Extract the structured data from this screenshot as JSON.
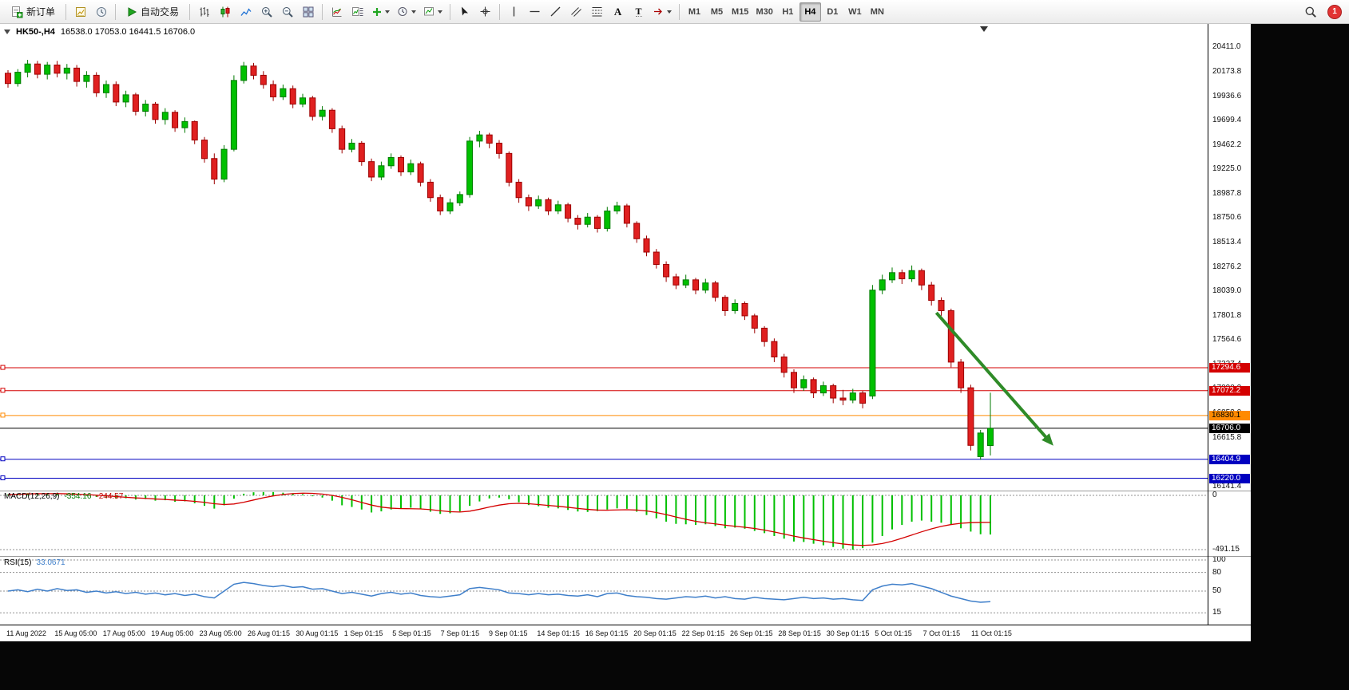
{
  "toolbar": {
    "new_order_label": "新订单",
    "autotrading_label": "自动交易",
    "timeframes": [
      "M1",
      "M5",
      "M15",
      "M30",
      "H1",
      "H4",
      "D1",
      "W1",
      "MN"
    ],
    "active_timeframe": "H4",
    "notification_count": "1"
  },
  "icons": {
    "new_order_icon": "page-plus",
    "new_chart_icon": "chart-page",
    "market_watch_icon": "clock-quotes",
    "autotrading_icon": "green-play",
    "bar_chart_icon": "ohlc-bars",
    "candlestick_icon": "candles",
    "line_chart_icon": "polyline",
    "zoom_in_icon": "magnifier-plus",
    "zoom_out_icon": "magnifier-minus",
    "tile_windows_icon": "grid-2x2",
    "indicators_icon": "chart-curves",
    "indicator_windows_icon": "chart-list",
    "add_indicator_icon": "green-plus-dropdown",
    "periods_icon": "clock-dropdown",
    "templates_icon": "template-dropdown",
    "cursor_icon": "pointer-arrow",
    "crosshair_icon": "crosshair",
    "vline_icon": "vertical-line",
    "hline_icon": "horizontal-line",
    "trendline_icon": "diagonal-line",
    "channel_icon": "parallel-lines",
    "fibonacci_icon": "fibo-lines",
    "text_tool_glyph": "A",
    "label_tool_glyph": "T",
    "arrows_icon": "arrow-dropdown",
    "search_icon": "magnifier",
    "shift_marker_icon": "down-triangle"
  },
  "chart_header": {
    "symbol_period": "HK50-,H4",
    "ohlc": "16538.0 17053.0 16441.5 16706.0"
  },
  "chart_data": {
    "type": "candlestick",
    "symbol": "HK50-",
    "timeframe": "H4",
    "title": "HK50-,H4 16538.0 17053.0 16441.5 16706.0",
    "grid": false,
    "legend_position": "none",
    "price_axis": {
      "min": 16100,
      "max": 20500,
      "ticks": [
        20411.0,
        20173.8,
        19936.6,
        19699.4,
        19462.2,
        19225.0,
        18987.8,
        18750.6,
        18513.4,
        18276.2,
        18039.0,
        17801.8,
        17564.6,
        17327.4,
        17090.2,
        16853.0,
        16615.8,
        16378.6,
        16141.4
      ]
    },
    "x_labels": [
      "11 Aug 2022",
      "15 Aug 05:00",
      "17 Aug 05:00",
      "19 Aug 05:00",
      "23 Aug 05:00",
      "26 Aug 01:15",
      "30 Aug 01:15",
      "1 Sep 01:15",
      "5 Sep 01:15",
      "7 Sep 01:15",
      "9 Sep 01:15",
      "14 Sep 01:15",
      "16 Sep 01:15",
      "20 Sep 01:15",
      "22 Sep 01:15",
      "26 Sep 01:15",
      "28 Sep 01:15",
      "30 Sep 01:15",
      "5 Oct 01:15",
      "7 Oct 01:15",
      "11 Oct 01:15"
    ],
    "candles": [
      [
        20160,
        20190,
        20020,
        20060
      ],
      [
        20060,
        20200,
        20030,
        20170
      ],
      [
        20170,
        20290,
        20120,
        20250
      ],
      [
        20250,
        20280,
        20110,
        20150
      ],
      [
        20150,
        20270,
        20100,
        20240
      ],
      [
        20240,
        20280,
        20120,
        20160
      ],
      [
        20160,
        20250,
        20100,
        20210
      ],
      [
        20210,
        20240,
        20030,
        20080
      ],
      [
        20080,
        20180,
        20020,
        20140
      ],
      [
        20140,
        20170,
        19930,
        19970
      ],
      [
        19970,
        20090,
        19920,
        20050
      ],
      [
        20050,
        20080,
        19840,
        19880
      ],
      [
        19880,
        19990,
        19830,
        19950
      ],
      [
        19950,
        19970,
        19750,
        19790
      ],
      [
        19790,
        19900,
        19740,
        19860
      ],
      [
        19860,
        19880,
        19670,
        19710
      ],
      [
        19710,
        19820,
        19660,
        19780
      ],
      [
        19780,
        19800,
        19590,
        19630
      ],
      [
        19630,
        19730,
        19580,
        19690
      ],
      [
        19690,
        19700,
        19470,
        19510
      ],
      [
        19510,
        19540,
        19290,
        19330
      ],
      [
        19330,
        19380,
        19080,
        19130
      ],
      [
        19130,
        19460,
        19100,
        19420
      ],
      [
        19420,
        20140,
        19400,
        20090
      ],
      [
        20090,
        20270,
        20060,
        20230
      ],
      [
        20230,
        20260,
        20100,
        20140
      ],
      [
        20140,
        20180,
        20010,
        20050
      ],
      [
        20050,
        20090,
        19890,
        19930
      ],
      [
        19930,
        20050,
        19900,
        20010
      ],
      [
        20010,
        20040,
        19820,
        19860
      ],
      [
        19860,
        19960,
        19830,
        19920
      ],
      [
        19920,
        19940,
        19700,
        19740
      ],
      [
        19740,
        19840,
        19700,
        19800
      ],
      [
        19800,
        19820,
        19580,
        19620
      ],
      [
        19620,
        19650,
        19380,
        19420
      ],
      [
        19420,
        19520,
        19390,
        19480
      ],
      [
        19480,
        19500,
        19260,
        19300
      ],
      [
        19300,
        19330,
        19110,
        19150
      ],
      [
        19150,
        19300,
        19120,
        19260
      ],
      [
        19260,
        19380,
        19230,
        19340
      ],
      [
        19340,
        19360,
        19160,
        19200
      ],
      [
        19200,
        19320,
        19170,
        19280
      ],
      [
        19280,
        19300,
        19060,
        19100
      ],
      [
        19100,
        19130,
        18910,
        18950
      ],
      [
        18950,
        18980,
        18780,
        18820
      ],
      [
        18820,
        18940,
        18790,
        18900
      ],
      [
        18900,
        19010,
        18870,
        18980
      ],
      [
        18980,
        19540,
        18950,
        19500
      ],
      [
        19500,
        19600,
        19440,
        19560
      ],
      [
        19560,
        19580,
        19430,
        19480
      ],
      [
        19480,
        19510,
        19330,
        19380
      ],
      [
        19380,
        19400,
        19060,
        19100
      ],
      [
        19100,
        19130,
        18900,
        18950
      ],
      [
        18950,
        18980,
        18820,
        18870
      ],
      [
        18870,
        18970,
        18840,
        18930
      ],
      [
        18930,
        18950,
        18780,
        18820
      ],
      [
        18820,
        18920,
        18790,
        18880
      ],
      [
        18880,
        18900,
        18710,
        18750
      ],
      [
        18750,
        18780,
        18640,
        18690
      ],
      [
        18690,
        18800,
        18660,
        18760
      ],
      [
        18760,
        18780,
        18610,
        18650
      ],
      [
        18650,
        18860,
        18620,
        18820
      ],
      [
        18820,
        18910,
        18790,
        18870
      ],
      [
        18870,
        18890,
        18660,
        18700
      ],
      [
        18700,
        18720,
        18510,
        18550
      ],
      [
        18550,
        18580,
        18380,
        18420
      ],
      [
        18420,
        18450,
        18260,
        18300
      ],
      [
        18300,
        18330,
        18130,
        18180
      ],
      [
        18180,
        18210,
        18060,
        18100
      ],
      [
        18100,
        18200,
        18070,
        18150
      ],
      [
        18150,
        18170,
        18010,
        18050
      ],
      [
        18050,
        18160,
        18020,
        18120
      ],
      [
        18120,
        18140,
        17940,
        17980
      ],
      [
        17980,
        18000,
        17800,
        17850
      ],
      [
        17850,
        17960,
        17820,
        17920
      ],
      [
        17920,
        17940,
        17760,
        17800
      ],
      [
        17800,
        17820,
        17630,
        17680
      ],
      [
        17680,
        17700,
        17500,
        17550
      ],
      [
        17550,
        17580,
        17350,
        17400
      ],
      [
        17400,
        17430,
        17200,
        17250
      ],
      [
        17250,
        17280,
        17050,
        17100
      ],
      [
        17100,
        17220,
        17070,
        17180
      ],
      [
        17180,
        17200,
        17000,
        17050
      ],
      [
        17050,
        17160,
        17020,
        17120
      ],
      [
        17120,
        17140,
        16950,
        17000
      ],
      [
        17000,
        17080,
        16930,
        16980
      ],
      [
        16980,
        17090,
        16950,
        17050
      ],
      [
        17050,
        17070,
        16900,
        16950
      ],
      [
        17020,
        18100,
        16990,
        18050
      ],
      [
        18050,
        18200,
        18010,
        18150
      ],
      [
        18150,
        18270,
        18120,
        18220
      ],
      [
        18220,
        18250,
        18110,
        18160
      ],
      [
        18160,
        18290,
        18130,
        18240
      ],
      [
        18240,
        18260,
        18050,
        18100
      ],
      [
        18100,
        18130,
        17900,
        17950
      ],
      [
        17950,
        17980,
        17800,
        17850
      ],
      [
        17850,
        17870,
        17300,
        17350
      ],
      [
        17350,
        17380,
        17050,
        17100
      ],
      [
        17100,
        17130,
        16490,
        16540
      ],
      [
        16430,
        16690,
        16400,
        16660
      ],
      [
        16538,
        17053,
        16441.5,
        16706
      ]
    ],
    "hlines": [
      {
        "price": 17294.6,
        "color": "#d40000"
      },
      {
        "price": 17072.2,
        "color": "#d40000"
      },
      {
        "price": 16830.1,
        "color": "#ff8a00"
      },
      {
        "price": 16404.9,
        "color": "#0000c0"
      },
      {
        "price": 16220.0,
        "color": "#0000c0"
      }
    ],
    "current_price": 16706.0,
    "arrow": {
      "from_bar": 94.5,
      "from_price": 17830,
      "to_bar": 106.2,
      "to_price": 16560
    },
    "macd": {
      "name": "MACD(12,26,9)",
      "main_value": "-354.16",
      "signal_value": "-244.57",
      "scale_ticks": [
        0,
        -491.15
      ],
      "histogram": [
        8,
        14,
        20,
        16,
        12,
        18,
        10,
        4,
        -6,
        -14,
        -22,
        -28,
        -26,
        -38,
        -34,
        -48,
        -44,
        -58,
        -54,
        -72,
        -95,
        -120,
        -90,
        -30,
        15,
        28,
        30,
        30,
        24,
        18,
        10,
        -8,
        -20,
        -48,
        -90,
        -105,
        -128,
        -155,
        -145,
        -128,
        -122,
        -112,
        -122,
        -148,
        -168,
        -162,
        -146,
        -95,
        -55,
        -28,
        -20,
        -35,
        -62,
        -88,
        -98,
        -112,
        -118,
        -132,
        -146,
        -150,
        -142,
        -128,
        -118,
        -122,
        -148,
        -178,
        -208,
        -238,
        -258,
        -262,
        -268,
        -262,
        -278,
        -298,
        -292,
        -302,
        -322,
        -342,
        -368,
        -392,
        -418,
        -422,
        -438,
        -452,
        -468,
        -482,
        -491,
        -478,
        -428,
        -368,
        -308,
        -268,
        -238,
        -228,
        -238,
        -248,
        -268,
        -298,
        -328,
        -352,
        -354.16
      ],
      "signal": [
        6,
        9,
        13,
        15,
        15,
        16,
        14,
        11,
        7,
        2,
        -4,
        -11,
        -17,
        -23,
        -27,
        -33,
        -37,
        -43,
        -47,
        -54,
        -63,
        -76,
        -83,
        -78,
        -62,
        -42,
        -22,
        -5,
        8,
        16,
        20,
        18,
        12,
        0,
        -18,
        -40,
        -64,
        -88,
        -106,
        -116,
        -120,
        -121,
        -123,
        -129,
        -139,
        -148,
        -151,
        -143,
        -126,
        -106,
        -88,
        -76,
        -72,
        -76,
        -83,
        -91,
        -99,
        -108,
        -118,
        -127,
        -133,
        -134,
        -132,
        -130,
        -133,
        -141,
        -155,
        -174,
        -196,
        -217,
        -235,
        -248,
        -258,
        -270,
        -280,
        -289,
        -300,
        -314,
        -331,
        -350,
        -369,
        -386,
        -401,
        -415,
        -428,
        -440,
        -449,
        -453,
        -449,
        -436,
        -415,
        -388,
        -359,
        -330,
        -303,
        -281,
        -264,
        -253,
        -247,
        -245,
        -244.57
      ]
    },
    "rsi": {
      "name": "RSI(15)",
      "value": "33.0671",
      "scale_ticks": [
        100,
        80,
        50,
        15
      ],
      "values": [
        50,
        52,
        49,
        53,
        50,
        54,
        51,
        52,
        48,
        50,
        47,
        49,
        46,
        48,
        45,
        47,
        44,
        46,
        43,
        45,
        41,
        39,
        50,
        61,
        64,
        62,
        59,
        57,
        59,
        56,
        57,
        53,
        54,
        50,
        46,
        48,
        45,
        42,
        46,
        48,
        45,
        47,
        43,
        41,
        40,
        42,
        44,
        54,
        56,
        54,
        52,
        47,
        46,
        44,
        46,
        44,
        45,
        43,
        42,
        44,
        41,
        46,
        47,
        43,
        41,
        40,
        38,
        37,
        39,
        41,
        40,
        42,
        39,
        41,
        38,
        37,
        40,
        38,
        37,
        36,
        38,
        40,
        38,
        39,
        37,
        38,
        36,
        35,
        52,
        58,
        61,
        60,
        62,
        58,
        54,
        48,
        42,
        38,
        34,
        32,
        33.07
      ]
    },
    "colors": {
      "bull": "#00c000",
      "bull_border": "#007a00",
      "bear": "#e02020",
      "bear_border": "#9c0000",
      "macd_hist": "#00c000",
      "macd_signal": "#d40000",
      "rsi": "#3f7fca",
      "current": "#000000",
      "arrow": "#2f8b28",
      "hline_red": "#d40000",
      "hline_orange": "#ff8a00",
      "hline_blue": "#0000c0"
    }
  }
}
